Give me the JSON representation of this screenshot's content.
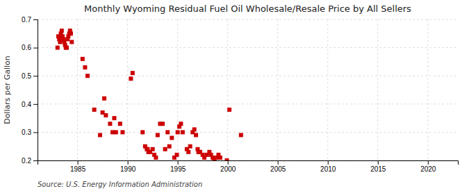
{
  "chart_data": {
    "type": "scatter",
    "title": "Monthly Wyoming Residual Fuel Oil Wholesale/Resale Price by All Sellers",
    "ylabel": "Dollars per Gallon",
    "annotations": [
      "Source: U.S. Energy Information Administration"
    ],
    "color": "#cc0000",
    "marker": "square",
    "grid": true,
    "xlim": [
      1981,
      2023
    ],
    "ylim": [
      0.2,
      0.7
    ],
    "xticks": [
      1985,
      1990,
      1995,
      2000,
      2005,
      2010,
      2015,
      2020
    ],
    "yticks": [
      0.2,
      0.3,
      0.4,
      0.5,
      0.6,
      0.7
    ],
    "x": [
      1983.0,
      1983.08,
      1983.17,
      1983.25,
      1983.33,
      1983.42,
      1983.5,
      1983.58,
      1983.67,
      1983.75,
      1983.83,
      1983.92,
      1984.0,
      1984.08,
      1984.17,
      1984.25,
      1984.33,
      1984.42,
      1985.5,
      1985.75,
      1986.0,
      1986.67,
      1987.25,
      1987.5,
      1987.67,
      1987.83,
      1988.25,
      1988.5,
      1988.67,
      1988.83,
      1989.25,
      1989.5,
      1990.33,
      1990.5,
      1991.5,
      1991.75,
      1991.92,
      1992.0,
      1992.08,
      1992.25,
      1992.5,
      1992.67,
      1992.83,
      1993.0,
      1993.25,
      1993.5,
      1993.75,
      1994.0,
      1994.17,
      1994.42,
      1994.67,
      1994.92,
      1995.0,
      1995.17,
      1995.33,
      1995.5,
      1995.92,
      1996.08,
      1996.25,
      1996.5,
      1996.67,
      1996.83,
      1997.0,
      1997.08,
      1997.25,
      1997.5,
      1997.67,
      1997.92,
      1998.17,
      1998.33,
      1998.5,
      1998.67,
      1998.92,
      1999.08,
      1999.25,
      1999.92,
      2000.17,
      2001.33
    ],
    "values": [
      0.6,
      0.64,
      0.63,
      0.62,
      0.65,
      0.66,
      0.64,
      0.63,
      0.62,
      0.61,
      0.6,
      0.6,
      0.63,
      0.64,
      0.65,
      0.66,
      0.65,
      0.62,
      0.56,
      0.53,
      0.5,
      0.38,
      0.29,
      0.37,
      0.42,
      0.36,
      0.33,
      0.3,
      0.35,
      0.3,
      0.33,
      0.3,
      0.49,
      0.51,
      0.3,
      0.25,
      0.24,
      0.24,
      0.23,
      0.23,
      0.24,
      0.22,
      0.21,
      0.29,
      0.33,
      0.33,
      0.24,
      0.3,
      0.25,
      0.28,
      0.21,
      0.22,
      0.3,
      0.32,
      0.33,
      0.3,
      0.24,
      0.23,
      0.25,
      0.3,
      0.31,
      0.29,
      0.24,
      0.23,
      0.23,
      0.22,
      0.21,
      0.22,
      0.23,
      0.22,
      0.21,
      0.2,
      0.21,
      0.22,
      0.21,
      0.2,
      0.38,
      0.29
    ]
  }
}
